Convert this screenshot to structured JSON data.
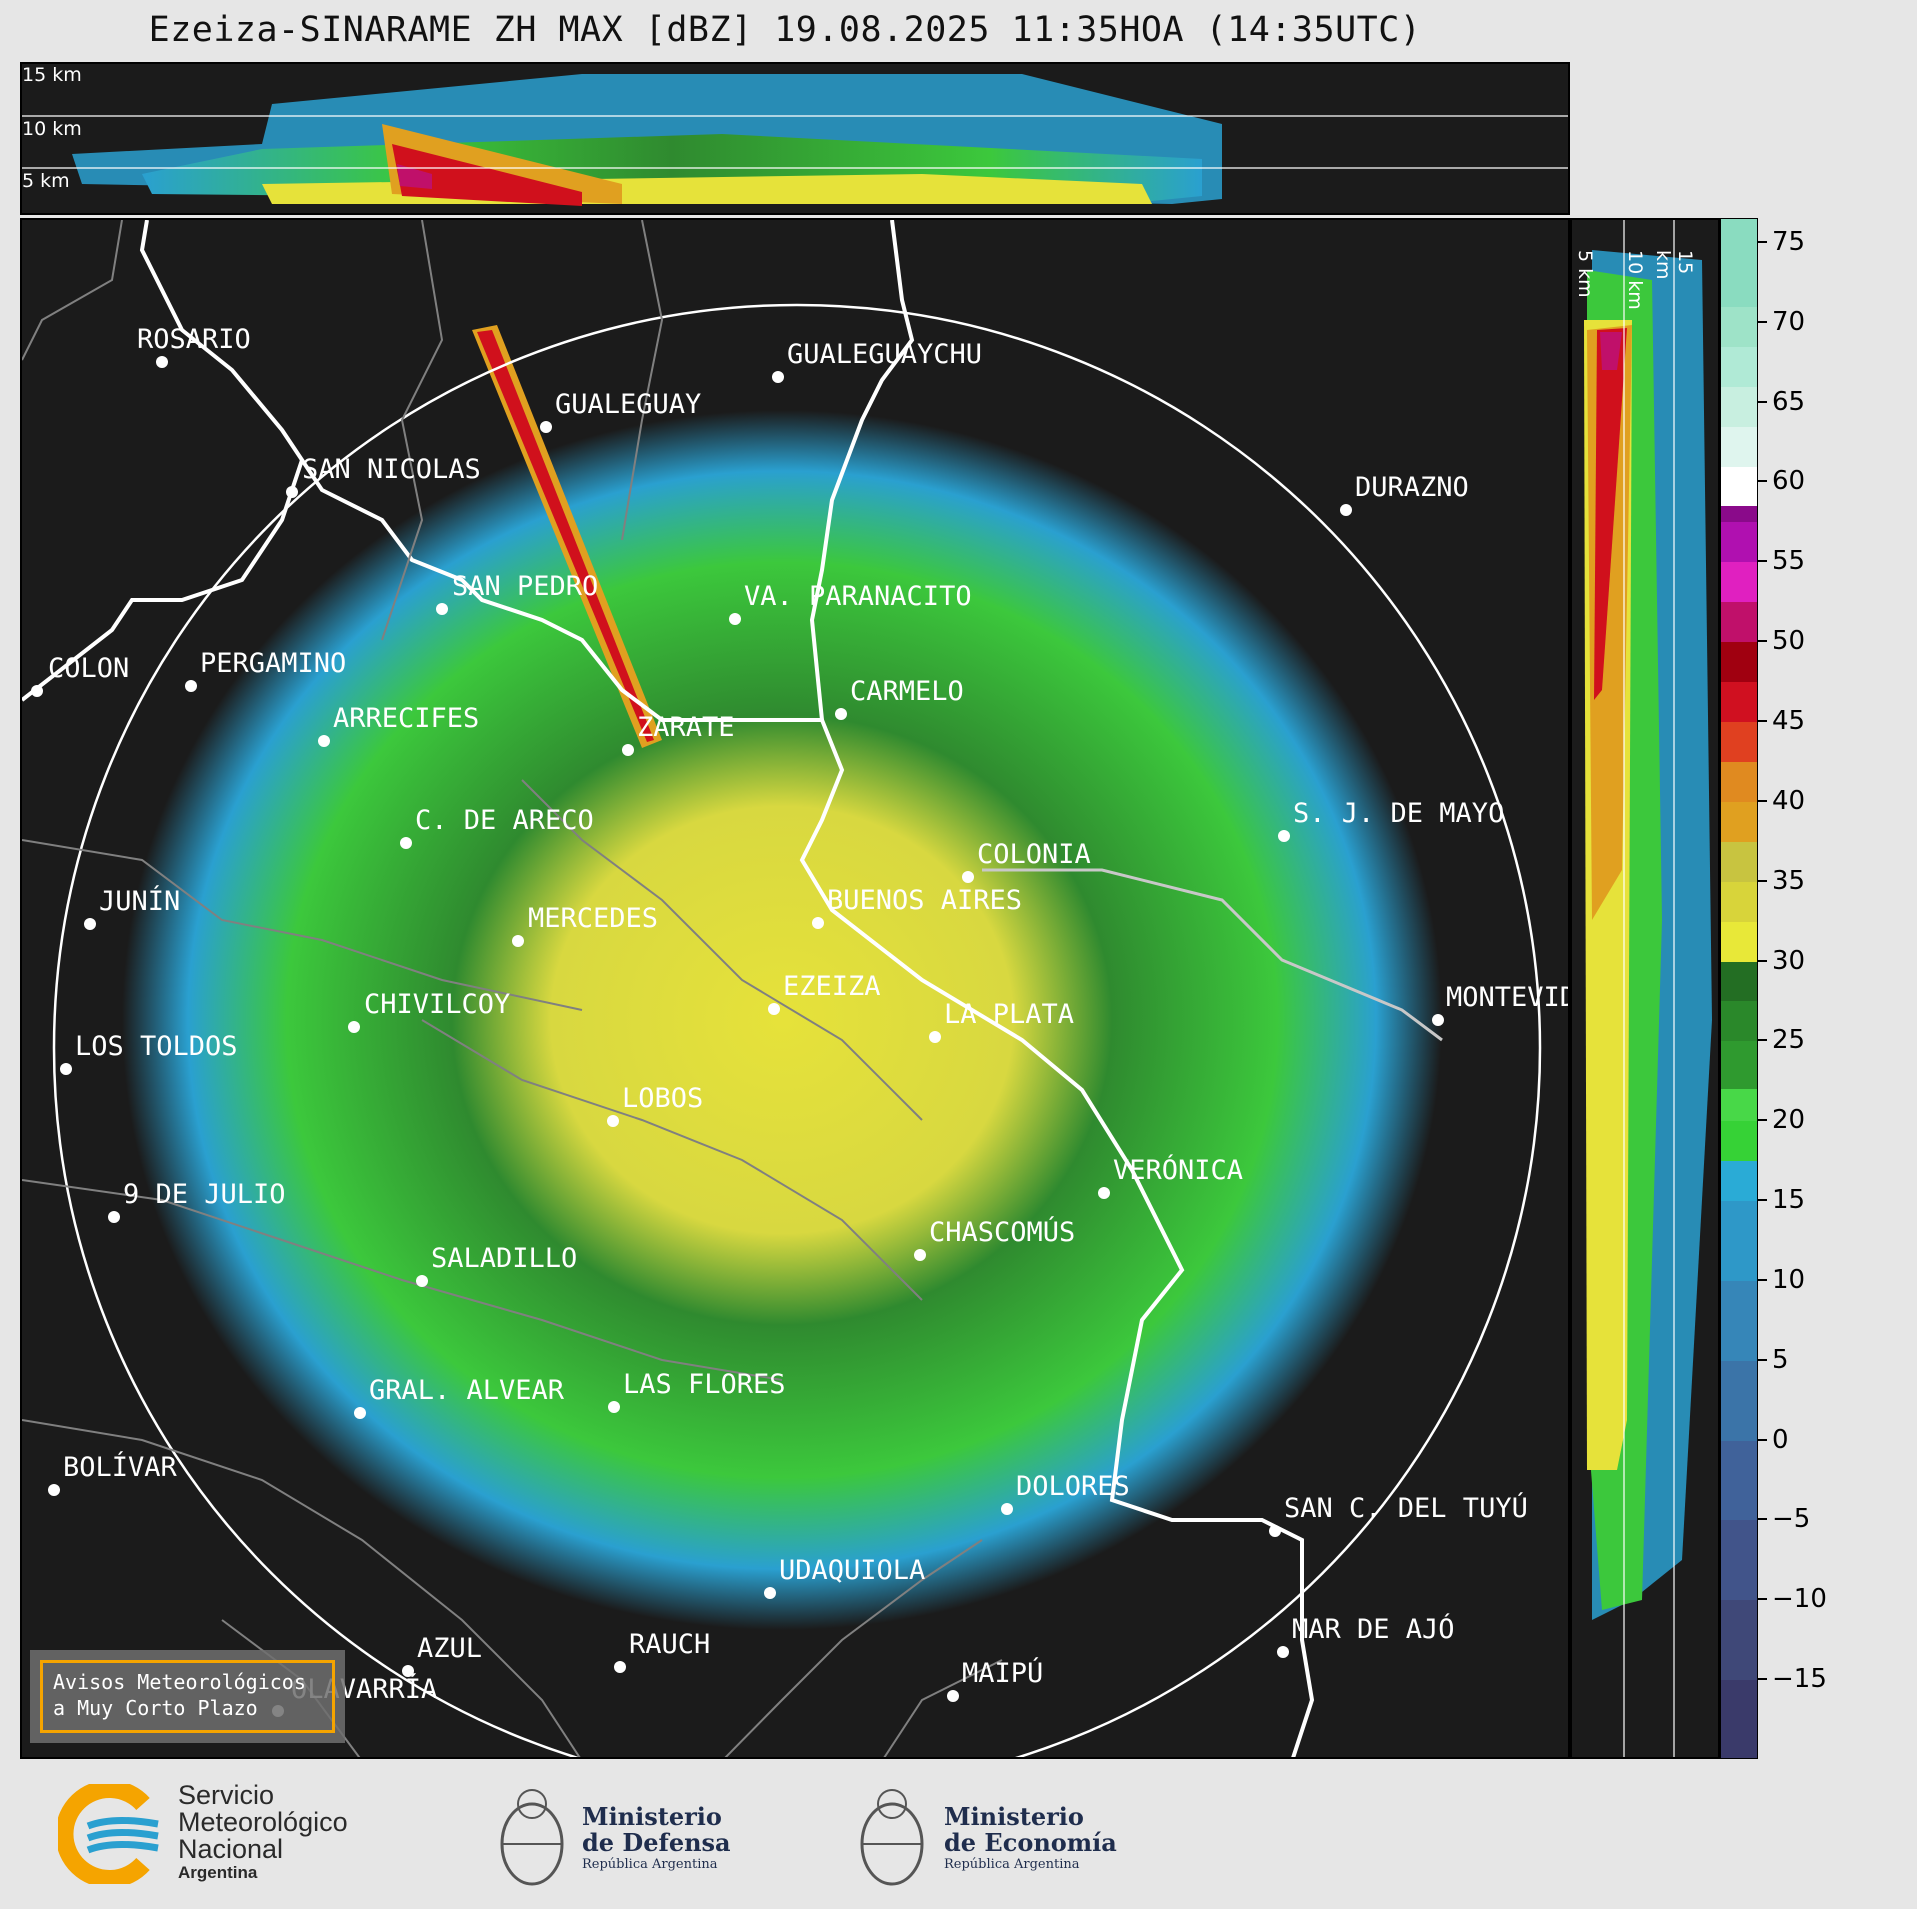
{
  "title": "Ezeiza-SINARAME ZH MAX [dBZ] 19.08.2025 11:35HOA (14:35UTC)",
  "top_panel": {
    "km_labels": [
      "15 km",
      "10 km",
      "5 km"
    ]
  },
  "side_panel": {
    "km_labels": [
      "5 km",
      "10 km",
      "15 km"
    ]
  },
  "colorbar": {
    "ticks": [
      "75",
      "70",
      "65",
      "60",
      "55",
      "50",
      "45",
      "40",
      "35",
      "30",
      "25",
      "20",
      "15",
      "10",
      "5",
      "0",
      "−5",
      "−10",
      "−15"
    ],
    "range": [
      -20,
      76.5
    ]
  },
  "cities": [
    {
      "name": "ROSARIO"
    },
    {
      "name": "GUALEGUAYCHU"
    },
    {
      "name": "GUALEGUAY"
    },
    {
      "name": "SAN NICOLAS"
    },
    {
      "name": "DURAZNO"
    },
    {
      "name": "SAN PEDRO"
    },
    {
      "name": "VA. PARANACITO"
    },
    {
      "name": "COLON"
    },
    {
      "name": "PERGAMINO"
    },
    {
      "name": "CARMELO"
    },
    {
      "name": "ARRECIFES"
    },
    {
      "name": "ZARATE"
    },
    {
      "name": "S. J. DE MAYO"
    },
    {
      "name": "C. DE ARECO"
    },
    {
      "name": "COLONIA"
    },
    {
      "name": "JUNÍN"
    },
    {
      "name": "BUENOS AIRES"
    },
    {
      "name": "MERCEDES"
    },
    {
      "name": "MONTEVIDEO"
    },
    {
      "name": "EZEIZA"
    },
    {
      "name": "CHIVILCOY"
    },
    {
      "name": "LA PLATA"
    },
    {
      "name": "LOS TOLDOS"
    },
    {
      "name": "LOBOS"
    },
    {
      "name": "VERÓNICA"
    },
    {
      "name": "9 DE JULIO"
    },
    {
      "name": "CHASCOMÚS"
    },
    {
      "name": "SALADILLO"
    },
    {
      "name": "GRAL. ALVEAR"
    },
    {
      "name": "LAS FLORES"
    },
    {
      "name": "BOLÍVAR"
    },
    {
      "name": "DOLORES"
    },
    {
      "name": "SAN C. DEL TUYÚ"
    },
    {
      "name": "UDAQUIOLA"
    },
    {
      "name": "MAR DE AJÓ"
    },
    {
      "name": "AZUL"
    },
    {
      "name": "RAUCH"
    },
    {
      "name": "OLAVARRÍA"
    },
    {
      "name": "MAIPÚ"
    }
  ],
  "aviso": {
    "line1": "Avisos Meteorológicos",
    "line2": "a Muy Corto Plazo"
  },
  "logos": {
    "smn": {
      "line1": "Servicio",
      "line2": "Meteorológico",
      "line3": "Nacional",
      "line4": "Argentina"
    },
    "defensa": {
      "line1": "Ministerio",
      "line2": "de Defensa",
      "line3": "República Argentina"
    },
    "economia": {
      "line1": "Ministerio",
      "line2": "de Economía",
      "line3": "República Argentina"
    }
  },
  "colors": {
    "ring": "#ffffff",
    "background": "#1b1b1b",
    "river": "#ffffff",
    "border": "#808080",
    "aviso_border": "#f5a400"
  }
}
